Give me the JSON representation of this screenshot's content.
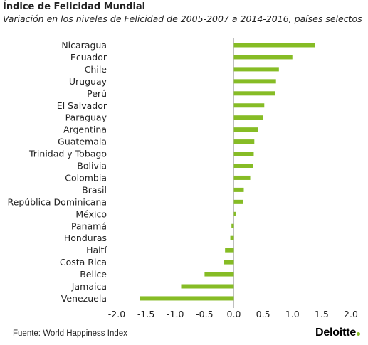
{
  "chart_data": {
    "type": "bar",
    "orientation": "horizontal",
    "title": "Índice de Felicidad Mundial",
    "subtitle": "Variación en los niveles de Felicidad de 2005-2007 a 2014-2016, países selectos",
    "categories": [
      "Nicaragua",
      "Ecuador",
      "Chile",
      "Uruguay",
      "Perú",
      "El Salvador",
      "Paraguay",
      "Argentina",
      "Guatemala",
      "Trinidad y Tobago",
      "Bolivia",
      "Colombia",
      "Brasil",
      "República Dominicana",
      "México",
      "Panamá",
      "Honduras",
      "Haití",
      "Costa Rica",
      "Belice",
      "Jamaica",
      "Venezuela"
    ],
    "values": [
      1.38,
      1.0,
      0.77,
      0.72,
      0.71,
      0.52,
      0.5,
      0.41,
      0.35,
      0.34,
      0.33,
      0.28,
      0.17,
      0.16,
      0.03,
      -0.04,
      -0.06,
      -0.15,
      -0.17,
      -0.5,
      -0.9,
      -1.6
    ],
    "xlim": [
      -2.0,
      2.0
    ],
    "xticks": [
      "-2.0",
      "-1.5",
      "-1.0",
      "-0.5",
      "0.0",
      "0.5",
      "1.0",
      "1.5",
      "2.0"
    ],
    "xlabel": "",
    "ylabel": "",
    "grid": false,
    "bar_color": "#86bc25"
  },
  "footer": {
    "source": "Fuente: World Happiness Index",
    "logo_text": "Deloitte",
    "logo_dot_color": "#86bc25"
  }
}
